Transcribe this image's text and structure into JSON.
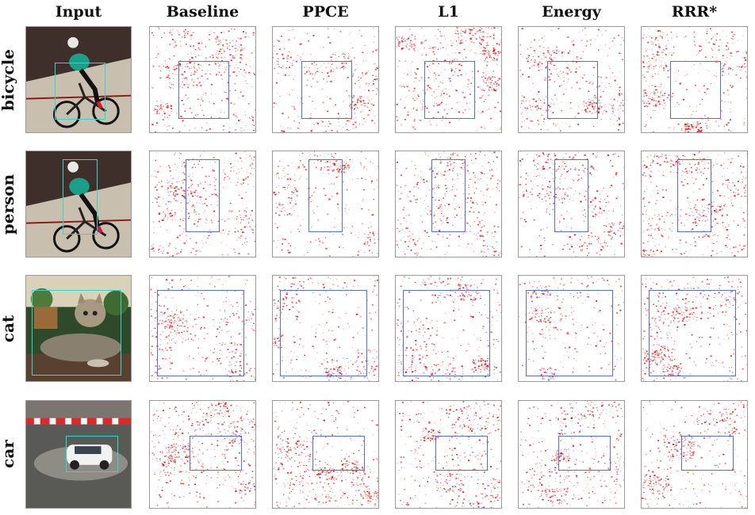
{
  "columns": [
    "Input",
    "Baseline",
    "PPCE",
    "L1",
    "Energy",
    "RRR*"
  ],
  "rows": [
    {
      "label": "bicycle"
    },
    {
      "label": "person"
    },
    {
      "label": "cat"
    },
    {
      "label": "car"
    }
  ],
  "colors": {
    "heat": "#d01018",
    "bbox_explanation": "#5470e0",
    "bbox_input": "#33d6cf"
  }
}
